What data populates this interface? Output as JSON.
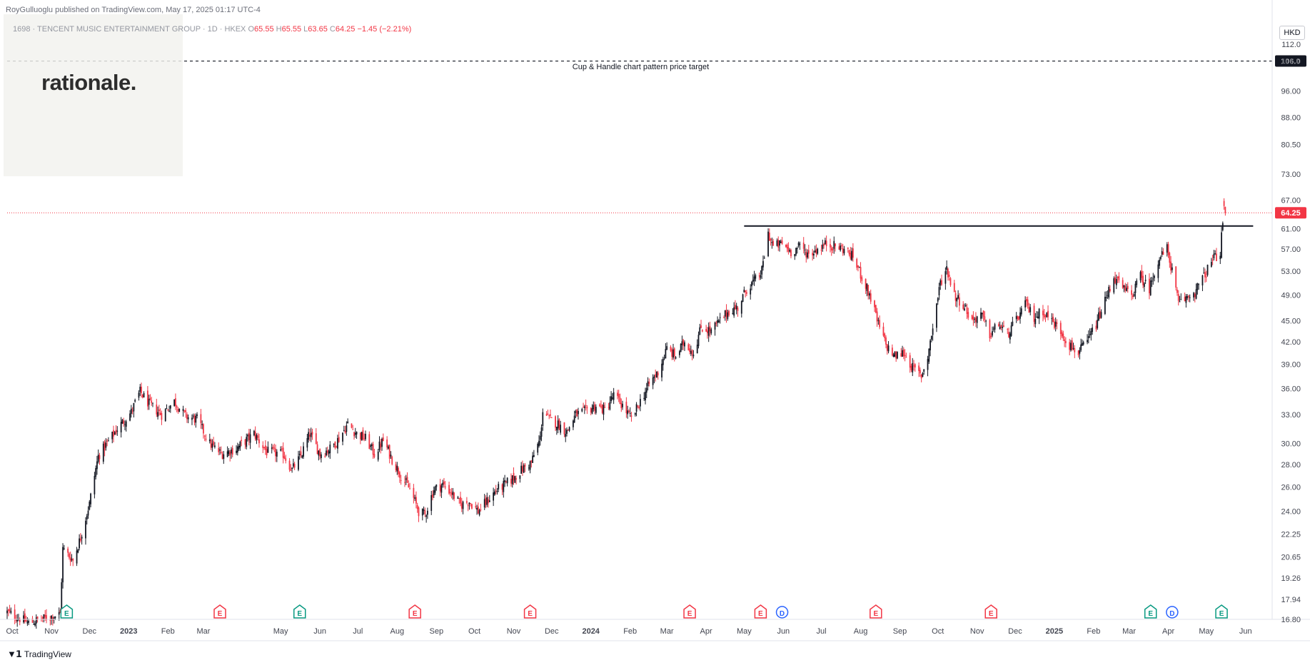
{
  "header": {
    "published_line": "RoyGulluoglu published on TradingView.com, May 17, 2025 01:17 UTC-4",
    "symbol_prefix": "1698 · TENCENT MUSIC ENTERTAINMENT GROUP · 1D · HKEX",
    "o_label": "O",
    "o_value": "65.55",
    "h_label": "H",
    "h_value": "65.55",
    "l_label": "L",
    "l_value": "63.65",
    "c_label": "C",
    "c_value": "64.25",
    "change": "−1.45 (−2.21%)"
  },
  "logo": {
    "text": "rationale."
  },
  "currency": "HKD",
  "annotation": {
    "text": "Cup & Handle chart pattern price target"
  },
  "branding": {
    "text": "TradingView"
  },
  "colors": {
    "up": "#131722",
    "down": "#f23645",
    "price_line": "#f23645",
    "event_green": "#089981",
    "event_blue": "#2962ff",
    "event_red": "#f23645"
  },
  "chart_data": {
    "type": "candlestick",
    "scale": "log",
    "y_range": [
      16.8,
      118
    ],
    "x_range": [
      "2022-09-27",
      "2025-06-22"
    ],
    "price_ticks": [
      "112.0",
      "106.0",
      "96.00",
      "88.00",
      "80.50",
      "73.00",
      "67.00",
      "61.00",
      "57.00",
      "53.00",
      "49.00",
      "45.00",
      "42.00",
      "39.00",
      "36.00",
      "33.00",
      "30.00",
      "28.00",
      "26.00",
      "24.00",
      "22.25",
      "20.65",
      "19.26",
      "17.94",
      "16.80"
    ],
    "time_ticks": [
      {
        "label": "Oct",
        "date": "2022-10-01",
        "bold": false
      },
      {
        "label": "Nov",
        "date": "2022-11-01",
        "bold": false
      },
      {
        "label": "Dec",
        "date": "2022-12-01",
        "bold": false
      },
      {
        "label": "2023",
        "date": "2023-01-01",
        "bold": true
      },
      {
        "label": "Feb",
        "date": "2023-02-01",
        "bold": false
      },
      {
        "label": "Mar",
        "date": "2023-03-01",
        "bold": false
      },
      {
        "label": "May",
        "date": "2023-05-01",
        "bold": false
      },
      {
        "label": "Jun",
        "date": "2023-06-01",
        "bold": false
      },
      {
        "label": "Jul",
        "date": "2023-07-01",
        "bold": false
      },
      {
        "label": "Aug",
        "date": "2023-08-01",
        "bold": false
      },
      {
        "label": "Sep",
        "date": "2023-09-01",
        "bold": false
      },
      {
        "label": "Oct",
        "date": "2023-10-01",
        "bold": false
      },
      {
        "label": "Nov",
        "date": "2023-11-01",
        "bold": false
      },
      {
        "label": "Dec",
        "date": "2023-12-01",
        "bold": false
      },
      {
        "label": "2024",
        "date": "2024-01-01",
        "bold": true
      },
      {
        "label": "Feb",
        "date": "2024-02-01",
        "bold": false
      },
      {
        "label": "Mar",
        "date": "2024-03-01",
        "bold": false
      },
      {
        "label": "Apr",
        "date": "2024-04-01",
        "bold": false
      },
      {
        "label": "May",
        "date": "2024-05-01",
        "bold": false
      },
      {
        "label": "Jun",
        "date": "2024-06-01",
        "bold": false
      },
      {
        "label": "Jul",
        "date": "2024-07-01",
        "bold": false
      },
      {
        "label": "Aug",
        "date": "2024-08-01",
        "bold": false
      },
      {
        "label": "Sep",
        "date": "2024-09-01",
        "bold": false
      },
      {
        "label": "Oct",
        "date": "2024-10-01",
        "bold": false
      },
      {
        "label": "Nov",
        "date": "2024-11-01",
        "bold": false
      },
      {
        "label": "Dec",
        "date": "2024-12-01",
        "bold": false
      },
      {
        "label": "2025",
        "date": "2025-01-01",
        "bold": true
      },
      {
        "label": "Feb",
        "date": "2025-02-01",
        "bold": false
      },
      {
        "label": "Mar",
        "date": "2025-03-01",
        "bold": false
      },
      {
        "label": "Apr",
        "date": "2025-04-01",
        "bold": false
      },
      {
        "label": "May",
        "date": "2025-05-01",
        "bold": false
      },
      {
        "label": "Jun",
        "date": "2025-06-01",
        "bold": false
      }
    ],
    "target_level": {
      "value": 106.0,
      "label": "106.0",
      "start": "2022-09-27",
      "end": "2025-06-22"
    },
    "resistance_line": {
      "value": 61.5,
      "start": "2024-05-01",
      "end": "2025-06-07"
    },
    "last_price": {
      "value": 64.25,
      "label": "64.25"
    },
    "price_path": [
      [
        "2022-09-27",
        17.2
      ],
      [
        "2022-10-14",
        16.6
      ],
      [
        "2022-11-08",
        17.1
      ],
      [
        "2022-11-10",
        21.2
      ],
      [
        "2022-11-18",
        20.4
      ],
      [
        "2022-11-24",
        22.0
      ],
      [
        "2022-12-01",
        24.6
      ],
      [
        "2022-12-08",
        28.8
      ],
      [
        "2022-12-16",
        30.2
      ],
      [
        "2022-12-23",
        31.5
      ],
      [
        "2023-01-03",
        33.3
      ],
      [
        "2023-01-10",
        35.6
      ],
      [
        "2023-01-17",
        34.2
      ],
      [
        "2023-01-27",
        33.0
      ],
      [
        "2023-02-06",
        34.5
      ],
      [
        "2023-02-15",
        32.8
      ],
      [
        "2023-02-24",
        32.5
      ],
      [
        "2023-03-06",
        30.0
      ],
      [
        "2023-03-15",
        29.0
      ],
      [
        "2023-03-27",
        29.5
      ],
      [
        "2023-04-10",
        31.0
      ],
      [
        "2023-04-20",
        29.2
      ],
      [
        "2023-05-03",
        29.0
      ],
      [
        "2023-05-10",
        27.5
      ],
      [
        "2023-05-17",
        28.8
      ],
      [
        "2023-05-24",
        31.0
      ],
      [
        "2023-06-01",
        29.0
      ],
      [
        "2023-06-09",
        29.5
      ],
      [
        "2023-06-16",
        30.5
      ],
      [
        "2023-06-23",
        32.0
      ],
      [
        "2023-06-30",
        31.0
      ],
      [
        "2023-07-07",
        30.5
      ],
      [
        "2023-07-14",
        29.0
      ],
      [
        "2023-07-21",
        30.3
      ],
      [
        "2023-07-28",
        28.5
      ],
      [
        "2023-08-04",
        27.0
      ],
      [
        "2023-08-11",
        25.8
      ],
      [
        "2023-08-18",
        24.0
      ],
      [
        "2023-08-23",
        23.7
      ],
      [
        "2023-08-30",
        25.8
      ],
      [
        "2023-09-06",
        26.2
      ],
      [
        "2023-09-13",
        25.5
      ],
      [
        "2023-09-20",
        24.5
      ],
      [
        "2023-09-27",
        24.8
      ],
      [
        "2023-10-04",
        24.0
      ],
      [
        "2023-10-11",
        24.8
      ],
      [
        "2023-10-18",
        25.7
      ],
      [
        "2023-10-25",
        26.2
      ],
      [
        "2023-11-01",
        26.8
      ],
      [
        "2023-11-08",
        27.6
      ],
      [
        "2023-11-15",
        28.2
      ],
      [
        "2023-11-22",
        30.5
      ],
      [
        "2023-11-24",
        33.5
      ],
      [
        "2023-11-29",
        32.5
      ],
      [
        "2023-12-06",
        32.0
      ],
      [
        "2023-12-13",
        31.2
      ],
      [
        "2023-12-20",
        33.0
      ],
      [
        "2023-12-28",
        33.4
      ],
      [
        "2024-01-05",
        34.0
      ],
      [
        "2024-01-12",
        33.5
      ],
      [
        "2024-01-19",
        35.2
      ],
      [
        "2024-01-26",
        34.0
      ],
      [
        "2024-02-02",
        32.5
      ],
      [
        "2024-02-09",
        34.5
      ],
      [
        "2024-02-16",
        36.5
      ],
      [
        "2024-02-23",
        38.0
      ],
      [
        "2024-03-01",
        41.0
      ],
      [
        "2024-03-08",
        40.0
      ],
      [
        "2024-03-15",
        42.0
      ],
      [
        "2024-03-22",
        40.5
      ],
      [
        "2024-03-28",
        44.0
      ],
      [
        "2024-04-05",
        43.5
      ],
      [
        "2024-04-12",
        45.0
      ],
      [
        "2024-04-19",
        46.5
      ],
      [
        "2024-04-26",
        47.0
      ],
      [
        "2024-05-03",
        50.0
      ],
      [
        "2024-05-10",
        51.5
      ],
      [
        "2024-05-15",
        53.0
      ],
      [
        "2024-05-20",
        60.0
      ],
      [
        "2024-05-24",
        57.5
      ],
      [
        "2024-05-31",
        58.0
      ],
      [
        "2024-06-07",
        56.5
      ],
      [
        "2024-06-14",
        57.5
      ],
      [
        "2024-06-21",
        56.0
      ],
      [
        "2024-06-28",
        57.0
      ],
      [
        "2024-07-05",
        58.0
      ],
      [
        "2024-07-12",
        57.5
      ],
      [
        "2024-07-19",
        57.0
      ],
      [
        "2024-07-26",
        55.5
      ],
      [
        "2024-08-02",
        52.0
      ],
      [
        "2024-08-09",
        48.5
      ],
      [
        "2024-08-14",
        45.0
      ],
      [
        "2024-08-21",
        41.5
      ],
      [
        "2024-08-28",
        40.0
      ],
      [
        "2024-09-04",
        40.5
      ],
      [
        "2024-09-11",
        38.5
      ],
      [
        "2024-09-18",
        37.5
      ],
      [
        "2024-09-23",
        40.0
      ],
      [
        "2024-09-27",
        44.0
      ],
      [
        "2024-10-03",
        51.0
      ],
      [
        "2024-10-08",
        53.5
      ],
      [
        "2024-10-14",
        49.0
      ],
      [
        "2024-10-21",
        47.5
      ],
      [
        "2024-10-28",
        45.0
      ],
      [
        "2024-11-04",
        46.0
      ],
      [
        "2024-11-11",
        43.0
      ],
      [
        "2024-11-18",
        44.5
      ],
      [
        "2024-11-25",
        43.0
      ],
      [
        "2024-12-02",
        45.0
      ],
      [
        "2024-12-09",
        47.5
      ],
      [
        "2024-12-16",
        45.5
      ],
      [
        "2024-12-23",
        46.5
      ],
      [
        "2024-12-30",
        45.0
      ],
      [
        "2025-01-06",
        43.5
      ],
      [
        "2025-01-13",
        41.5
      ],
      [
        "2025-01-20",
        40.5
      ],
      [
        "2025-01-27",
        42.0
      ],
      [
        "2025-02-03",
        44.5
      ],
      [
        "2025-02-10",
        48.0
      ],
      [
        "2025-02-17",
        52.0
      ],
      [
        "2025-02-24",
        50.0
      ],
      [
        "2025-03-03",
        49.0
      ],
      [
        "2025-03-10",
        52.0
      ],
      [
        "2025-03-17",
        50.0
      ],
      [
        "2025-03-24",
        55.0
      ],
      [
        "2025-03-31",
        57.0
      ],
      [
        "2025-04-04",
        53.0
      ],
      [
        "2025-04-09",
        47.5
      ],
      [
        "2025-04-15",
        48.5
      ],
      [
        "2025-04-22",
        49.5
      ],
      [
        "2025-04-29",
        52.0
      ],
      [
        "2025-05-06",
        55.0
      ],
      [
        "2025-05-12",
        56.5
      ],
      [
        "2025-05-14",
        62.0
      ],
      [
        "2025-05-15",
        65.7
      ],
      [
        "2025-05-16",
        64.25
      ]
    ],
    "events": [
      {
        "date": "2022-11-13",
        "type": "E",
        "color": "green"
      },
      {
        "date": "2023-03-14",
        "type": "E",
        "color": "red"
      },
      {
        "date": "2023-05-16",
        "type": "E",
        "color": "green"
      },
      {
        "date": "2023-08-15",
        "type": "E",
        "color": "red"
      },
      {
        "date": "2023-11-14",
        "type": "E",
        "color": "red"
      },
      {
        "date": "2024-03-19",
        "type": "E",
        "color": "red"
      },
      {
        "date": "2024-05-14",
        "type": "E",
        "color": "red"
      },
      {
        "date": "2024-05-31",
        "type": "D",
        "color": "blue"
      },
      {
        "date": "2024-08-13",
        "type": "E",
        "color": "red"
      },
      {
        "date": "2024-11-12",
        "type": "E",
        "color": "red"
      },
      {
        "date": "2025-03-18",
        "type": "E",
        "color": "green"
      },
      {
        "date": "2025-04-04",
        "type": "D",
        "color": "blue"
      },
      {
        "date": "2025-05-13",
        "type": "E",
        "color": "green"
      }
    ]
  }
}
